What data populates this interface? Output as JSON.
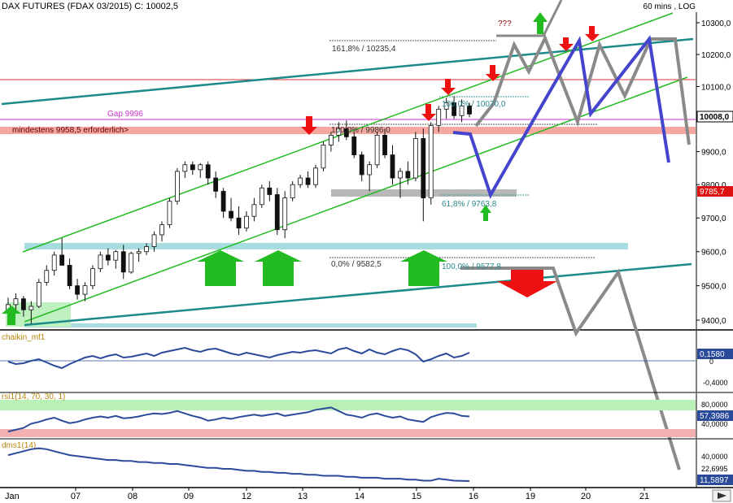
{
  "header": {
    "title": "DAX FUTURES (FDAX 03/2015) C: 10002,5",
    "timeframe": "60 mins , LOG"
  },
  "chart_data": {
    "type": "candlestick",
    "scale": "log",
    "price_axis": {
      "ticks": [
        10300,
        10200,
        10100,
        9900,
        9800,
        9700,
        9600,
        9500,
        9400
      ],
      "tick_labels": [
        "10300,0",
        "10200,0",
        "10100,0",
        "9900,0",
        "9800,0",
        "9700,0",
        "9600,0",
        "9500,0",
        "9400,0"
      ],
      "current_price_label": "10008,0",
      "current_price": 10008,
      "marker_label": "9785,7",
      "marker_price": 9785.7
    },
    "x_labels": [
      "Jan",
      "07",
      "08",
      "09",
      "12",
      "13",
      "14",
      "15",
      "16",
      "19",
      "20",
      "21"
    ],
    "candles_ohlc": [
      [
        9420,
        9465,
        9400,
        9445
      ],
      [
        9445,
        9478,
        9430,
        9462
      ],
      [
        9462,
        9470,
        9410,
        9430
      ],
      [
        9430,
        9455,
        9390,
        9440
      ],
      [
        9440,
        9520,
        9435,
        9510
      ],
      [
        9510,
        9560,
        9500,
        9545
      ],
      [
        9545,
        9600,
        9530,
        9590
      ],
      [
        9590,
        9640,
        9570,
        9560
      ],
      [
        9560,
        9580,
        9490,
        9500
      ],
      [
        9500,
        9520,
        9460,
        9475
      ],
      [
        9475,
        9510,
        9455,
        9500
      ],
      [
        9500,
        9560,
        9490,
        9550
      ],
      [
        9550,
        9600,
        9540,
        9590
      ],
      [
        9590,
        9610,
        9560,
        9575
      ],
      [
        9575,
        9605,
        9550,
        9600
      ],
      [
        9600,
        9620,
        9520,
        9540
      ],
      [
        9540,
        9600,
        9535,
        9595
      ],
      [
        9595,
        9610,
        9570,
        9600
      ],
      [
        9600,
        9625,
        9590,
        9615
      ],
      [
        9615,
        9660,
        9600,
        9650
      ],
      [
        9650,
        9690,
        9630,
        9680
      ],
      [
        9680,
        9760,
        9670,
        9750
      ],
      [
        9750,
        9850,
        9740,
        9840
      ],
      [
        9840,
        9870,
        9820,
        9860
      ],
      [
        9860,
        9870,
        9830,
        9845
      ],
      [
        9845,
        9865,
        9820,
        9860
      ],
      [
        9860,
        9870,
        9800,
        9820
      ],
      [
        9820,
        9840,
        9760,
        9780
      ],
      [
        9780,
        9790,
        9700,
        9720
      ],
      [
        9720,
        9760,
        9690,
        9700
      ],
      [
        9700,
        9735,
        9650,
        9670
      ],
      [
        9670,
        9720,
        9660,
        9705
      ],
      [
        9705,
        9760,
        9690,
        9740
      ],
      [
        9740,
        9800,
        9730,
        9790
      ],
      [
        9790,
        9810,
        9750,
        9770
      ],
      [
        9770,
        9790,
        9650,
        9665
      ],
      [
        9665,
        9780,
        9640,
        9760
      ],
      [
        9760,
        9810,
        9750,
        9800
      ],
      [
        9800,
        9830,
        9790,
        9820
      ],
      [
        9820,
        9840,
        9790,
        9800
      ],
      [
        9800,
        9860,
        9790,
        9850
      ],
      [
        9850,
        9930,
        9840,
        9920
      ],
      [
        9920,
        9960,
        9900,
        9950
      ],
      [
        9950,
        9990,
        9930,
        9970
      ],
      [
        9970,
        9995,
        9935,
        9945
      ],
      [
        9945,
        9960,
        9880,
        9890
      ],
      [
        9890,
        9900,
        9810,
        9830
      ],
      [
        9830,
        9870,
        9780,
        9860
      ],
      [
        9860,
        9960,
        9850,
        9950
      ],
      [
        9950,
        9970,
        9880,
        9890
      ],
      [
        9890,
        9920,
        9800,
        9820
      ],
      [
        9820,
        9850,
        9760,
        9840
      ],
      [
        9840,
        9870,
        9800,
        9820
      ],
      [
        9820,
        9960,
        9810,
        9940
      ],
      [
        9940,
        9970,
        9690,
        9760
      ],
      [
        9760,
        9990,
        9740,
        9980
      ],
      [
        9980,
        10040,
        9960,
        10030
      ],
      [
        10030,
        10065,
        10000,
        10050
      ],
      [
        10050,
        10070,
        10000,
        10010
      ],
      [
        10010,
        10060,
        9990,
        10040
      ],
      [
        10040,
        10050,
        10005,
        10015
      ]
    ],
    "channels": [
      {
        "name": "upper_teal",
        "color": "#1c8a8a",
        "points": [
          [
            0,
            10150
          ],
          [
            55,
            10230
          ]
        ]
      },
      {
        "name": "upper_green",
        "color": "#22bb22",
        "points": [
          [
            10,
            9600
          ],
          [
            52,
            10300
          ]
        ]
      },
      {
        "name": "lower_green",
        "color": "#22bb22",
        "points": [
          [
            10,
            9380
          ],
          [
            53,
            10100
          ]
        ]
      },
      {
        "name": "lower_teal",
        "color": "#1c8a8a",
        "points": [
          [
            1,
            9370
          ],
          [
            55,
            9550
          ]
        ]
      }
    ],
    "horizontal_levels": [
      {
        "label": "161,8% / 10235,4",
        "price": 10235.4,
        "color": "#333333"
      },
      {
        "label": "100,0% / 10070,0",
        "price": 10070,
        "color": "#2a8a8a"
      },
      {
        "label": "100,0% / 9986,0",
        "price": 9986,
        "color": "#333333"
      },
      {
        "label": "61,8% / 9763,8",
        "price": 9763.8,
        "color": "#2a8a8a"
      },
      {
        "label": "0,0% / 9582,5",
        "price": 9582.5,
        "color": "#333333"
      },
      {
        "label": "100,0% / 9577,8",
        "price": 9577.8,
        "color": "#2a8a8a"
      }
    ],
    "annotations": {
      "gap_label": "Gap 9996",
      "gap_price": 9996,
      "requirement_label": "mindestens 9958,5 erforderlich>",
      "requirement_price": 9958.5,
      "question_marks": "???",
      "red_line_price": 10120
    },
    "projections": [
      {
        "color": "#4444cc",
        "points": [
          [
            57,
            9955
          ],
          [
            60,
            9950
          ],
          [
            62,
            9760
          ],
          [
            67,
            10010
          ],
          [
            72,
            10200
          ],
          [
            73,
            10010
          ],
          [
            77,
            10215
          ],
          [
            80,
            10100
          ],
          [
            83,
            9880
          ]
        ]
      },
      {
        "color": "#4444cc",
        "points": [
          [
            73,
            10010
          ],
          [
            77,
            10215
          ]
        ]
      },
      {
        "color": "#8a8a8a",
        "points": [
          [
            60,
            9990
          ],
          [
            63,
            10100
          ],
          [
            65,
            10200
          ],
          [
            67,
            10130
          ],
          [
            69,
            10200
          ],
          [
            71,
            10100
          ],
          [
            73,
            10010
          ],
          [
            76,
            10200
          ],
          [
            78,
            10080
          ],
          [
            81,
            10220
          ],
          [
            84,
            9920
          ]
        ]
      },
      {
        "color": "#8a8a8a",
        "points": [
          [
            66,
            10290
          ],
          [
            68,
            10290
          ],
          [
            70,
            10370
          ]
        ]
      },
      {
        "color": "#8a8a8a",
        "points": [
          [
            57,
            9560
          ],
          [
            70,
            9560
          ],
          [
            73,
            9380
          ],
          [
            77,
            9545
          ],
          [
            86,
            9000
          ]
        ]
      }
    ],
    "indicators": [
      {
        "name": "chaikin_mf1",
        "label": "chaikin_mf1",
        "value_label": "0,1580",
        "zero_label": "0",
        "low_label": "-0,4000",
        "values": [
          0.05,
          0.02,
          0.03,
          0.06,
          0.08,
          0.04,
          0.0,
          -0.03,
          0.02,
          0.06,
          0.1,
          0.12,
          0.09,
          0.12,
          0.14,
          0.1,
          0.11,
          0.13,
          0.15,
          0.12,
          0.16,
          0.18,
          0.2,
          0.22,
          0.19,
          0.17,
          0.2,
          0.21,
          0.18,
          0.15,
          0.13,
          0.16,
          0.14,
          0.12,
          0.1,
          0.13,
          0.15,
          0.17,
          0.16,
          0.18,
          0.19,
          0.17,
          0.15,
          0.2,
          0.22,
          0.18,
          0.15,
          0.2,
          0.16,
          0.14,
          0.18,
          0.21,
          0.19,
          0.14,
          0.05,
          0.08,
          0.12,
          0.15,
          0.1,
          0.12,
          0.16
        ]
      },
      {
        "name": "rsi1",
        "label": "rsi1(14, 70, 30, 1)",
        "value_label": "57,3986",
        "high_label": "80,0000",
        "low_label": "40,0000",
        "values": [
          32,
          35,
          38,
          45,
          48,
          52,
          55,
          50,
          46,
          48,
          52,
          55,
          57,
          55,
          58,
          54,
          55,
          57,
          60,
          62,
          61,
          63,
          66,
          62,
          58,
          55,
          50,
          52,
          55,
          53,
          56,
          58,
          60,
          58,
          60,
          62,
          58,
          60,
          62,
          64,
          68,
          70,
          72,
          66,
          60,
          58,
          55,
          60,
          62,
          58,
          55,
          57,
          52,
          50,
          48,
          56,
          60,
          63,
          62,
          58,
          57
        ]
      },
      {
        "name": "dms1",
        "label": "dms1(14)",
        "value_label": "11,5897",
        "high_label": "40,0000",
        "mid_label": "22,6995",
        "values": [
          38,
          40,
          42,
          44,
          45,
          44,
          42,
          40,
          38,
          37,
          36,
          35,
          34,
          33,
          33,
          32,
          32,
          31,
          31,
          30,
          30,
          29,
          29,
          28,
          27,
          26,
          25,
          25,
          24,
          24,
          23,
          22,
          22,
          21,
          21,
          20,
          20,
          19,
          19,
          18,
          18,
          17,
          17,
          17,
          16,
          16,
          15,
          15,
          15,
          14,
          14,
          14,
          13,
          13,
          12,
          12,
          14,
          13,
          12,
          11.8,
          11.6
        ]
      }
    ]
  },
  "colors": {
    "candle": "#111111",
    "teal_band": "#a8dde0",
    "gap_band": "#f6a8a0",
    "gray_band": "#b8b8b8",
    "green_arrow": "#22bb22",
    "red_arrow": "#ee1111",
    "indicator_line": "#2b4a9a",
    "rsi_overbought_band": "#b8f0b8",
    "rsi_oversold_band": "#f2b0b0"
  }
}
